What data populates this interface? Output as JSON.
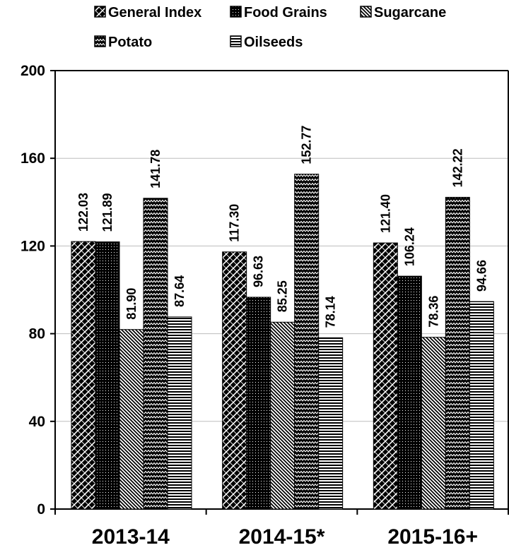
{
  "chart_data": {
    "type": "bar",
    "title": "",
    "xlabel": "",
    "ylabel": "",
    "categories": [
      "2013-14",
      "2014-15*",
      "2015-16+"
    ],
    "series": [
      {
        "name": "General Index",
        "values": [
          122.03,
          117.3,
          121.4
        ],
        "labels": [
          "122.03",
          "117.30",
          "121.40"
        ],
        "pattern": "diamond"
      },
      {
        "name": "Food Grains",
        "values": [
          121.89,
          96.63,
          106.24
        ],
        "labels": [
          "121.89",
          "96.63",
          "106.24"
        ],
        "pattern": "dots"
      },
      {
        "name": "Sugarcane",
        "values": [
          81.9,
          85.25,
          78.36
        ],
        "labels": [
          "81.90",
          "85.25",
          "78.36"
        ],
        "pattern": "diagonal"
      },
      {
        "name": "Potato",
        "values": [
          141.78,
          152.77,
          142.22
        ],
        "labels": [
          "141.78",
          "152.77",
          "142.22"
        ],
        "pattern": "zigzag"
      },
      {
        "name": "Oilseeds",
        "values": [
          87.64,
          78.14,
          94.66
        ],
        "labels": [
          "87.64",
          "78.14",
          "94.66"
        ],
        "pattern": "horizontal"
      }
    ],
    "yticks": [
      0,
      40,
      80,
      120,
      160,
      200
    ],
    "ylim": [
      0,
      200
    ],
    "grid": true,
    "legend_position": "top"
  }
}
